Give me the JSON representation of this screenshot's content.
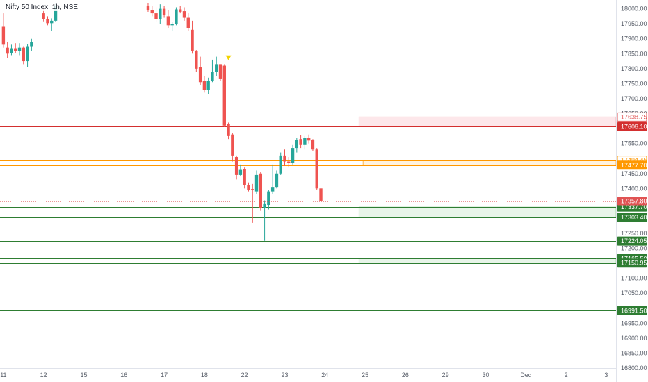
{
  "header": {
    "title": "Nifty 50 Index, 1h, NSE"
  },
  "chart_data": {
    "type": "candlestick",
    "title": "Nifty 50 Index, 1h, NSE",
    "ylim": [
      16800,
      18020
    ],
    "y_ticks": [
      "18000.00",
      "17950.00",
      "17900.00",
      "17850.00",
      "17800.00",
      "17750.00",
      "17700.00",
      "17650.00",
      "17550.00",
      "17500.00",
      "17450.00",
      "17400.00",
      "17250.00",
      "17200.00",
      "17100.00",
      "17050.00",
      "16950.00",
      "16900.00",
      "16850.00",
      "16800.00"
    ],
    "x_ticks": [
      {
        "label": "11",
        "bar": 0
      },
      {
        "label": "12",
        "bar": 10
      },
      {
        "label": "15",
        "bar": 20
      },
      {
        "label": "16",
        "bar": 30
      },
      {
        "label": "17",
        "bar": 40
      },
      {
        "label": "18",
        "bar": 50
      },
      {
        "label": "22",
        "bar": 60
      },
      {
        "label": "23",
        "bar": 70
      },
      {
        "label": "24",
        "bar": 80
      },
      {
        "label": "25",
        "bar": 90
      },
      {
        "label": "26",
        "bar": 100
      },
      {
        "label": "29",
        "bar": 110
      },
      {
        "label": "30",
        "bar": 120
      },
      {
        "label": "Dec",
        "bar": 130
      },
      {
        "label": "2",
        "bar": 140
      },
      {
        "label": "3",
        "bar": 150
      }
    ],
    "candles": [
      {
        "o": 17940,
        "h": 17985,
        "l": 17870,
        "c": 17880
      },
      {
        "o": 17870,
        "h": 17890,
        "l": 17835,
        "c": 17850
      },
      {
        "o": 17852,
        "h": 17880,
        "l": 17845,
        "c": 17868
      },
      {
        "o": 17868,
        "h": 17885,
        "l": 17852,
        "c": 17860
      },
      {
        "o": 17860,
        "h": 17885,
        "l": 17845,
        "c": 17870
      },
      {
        "o": 17870,
        "h": 17875,
        "l": 17815,
        "c": 17825
      },
      {
        "o": 17825,
        "h": 17882,
        "l": 17805,
        "c": 17875
      },
      {
        "o": 17875,
        "h": 17900,
        "l": 17860,
        "c": 17888
      },
      {
        "o": null,
        "h": null,
        "l": null,
        "c": null
      },
      {
        "o": null,
        "h": null,
        "l": null,
        "c": null
      },
      {
        "o": 17985,
        "h": 18000,
        "l": 17958,
        "c": 17965
      },
      {
        "o": 17965,
        "h": 17975,
        "l": 17945,
        "c": 17952
      },
      {
        "o": 17952,
        "h": 17968,
        "l": 17925,
        "c": 17960
      },
      {
        "o": 17960,
        "h": 18020,
        "l": 17955,
        "c": 18010
      },
      {
        "o": null,
        "h": null,
        "l": null,
        "c": null
      },
      {
        "o": null,
        "h": null,
        "l": null,
        "c": null
      },
      {
        "o": null,
        "h": null,
        "l": null,
        "c": null
      },
      {
        "o": null,
        "h": null,
        "l": null,
        "c": null
      },
      {
        "o": null,
        "h": null,
        "l": null,
        "c": null
      },
      {
        "o": null,
        "h": null,
        "l": null,
        "c": null
      },
      {
        "o": null,
        "h": null,
        "l": null,
        "c": null
      },
      {
        "o": null,
        "h": null,
        "l": null,
        "c": null
      },
      {
        "o": null,
        "h": null,
        "l": null,
        "c": null
      },
      {
        "o": null,
        "h": null,
        "l": null,
        "c": null
      },
      {
        "o": null,
        "h": null,
        "l": null,
        "c": null
      },
      {
        "o": null,
        "h": null,
        "l": null,
        "c": null
      },
      {
        "o": null,
        "h": null,
        "l": null,
        "c": null
      },
      {
        "o": null,
        "h": null,
        "l": null,
        "c": null
      },
      {
        "o": null,
        "h": null,
        "l": null,
        "c": null
      },
      {
        "o": null,
        "h": null,
        "l": null,
        "c": null
      },
      {
        "o": null,
        "h": null,
        "l": null,
        "c": null
      },
      {
        "o": null,
        "h": null,
        "l": null,
        "c": null
      },
      {
        "o": null,
        "h": null,
        "l": null,
        "c": null
      },
      {
        "o": null,
        "h": null,
        "l": null,
        "c": null
      },
      {
        "o": null,
        "h": null,
        "l": null,
        "c": null
      },
      {
        "o": null,
        "h": null,
        "l": null,
        "c": null
      },
      {
        "o": 18010,
        "h": 18020,
        "l": 17990,
        "c": 17995
      },
      {
        "o": 17995,
        "h": 18010,
        "l": 17975,
        "c": 17985
      },
      {
        "o": 17985,
        "h": 18005,
        "l": 17955,
        "c": 17965
      },
      {
        "o": 17965,
        "h": 18015,
        "l": 17950,
        "c": 18000
      },
      {
        "o": 18000,
        "h": 18010,
        "l": 17970,
        "c": 17980
      },
      {
        "o": 17975,
        "h": 17995,
        "l": 17935,
        "c": 17945
      },
      {
        "o": 17945,
        "h": 17955,
        "l": 17925,
        "c": 17950
      },
      {
        "o": 17950,
        "h": 18005,
        "l": 17945,
        "c": 17998
      },
      {
        "o": 17998,
        "h": 18010,
        "l": 17985,
        "c": 17990
      },
      {
        "o": 17992,
        "h": 18005,
        "l": 17960,
        "c": 17970
      },
      {
        "o": 17970,
        "h": 17985,
        "l": 17925,
        "c": 17935
      },
      {
        "o": 17930,
        "h": 17960,
        "l": 17850,
        "c": 17860
      },
      {
        "o": 17860,
        "h": 17862,
        "l": 17790,
        "c": 17800
      },
      {
        "o": 17805,
        "h": 17840,
        "l": 17745,
        "c": 17755
      },
      {
        "o": 17760,
        "h": 17775,
        "l": 17720,
        "c": 17730
      },
      {
        "o": 17730,
        "h": 17770,
        "l": 17715,
        "c": 17760
      },
      {
        "o": 17760,
        "h": 17830,
        "l": 17755,
        "c": 17790
      },
      {
        "o": 17790,
        "h": 17840,
        "l": 17775,
        "c": 17815
      },
      {
        "o": 17815,
        "h": 17815,
        "l": 17760,
        "c": 17765
      },
      {
        "o": 17810,
        "h": 17815,
        "l": 17605,
        "c": 17610
      },
      {
        "o": 17615,
        "h": 17620,
        "l": 17565,
        "c": 17575
      },
      {
        "o": 17580,
        "h": 17585,
        "l": 17490,
        "c": 17510
      },
      {
        "o": 17505,
        "h": 17510,
        "l": 17430,
        "c": 17445
      },
      {
        "o": 17445,
        "h": 17480,
        "l": 17440,
        "c": 17462
      },
      {
        "o": 17465,
        "h": 17470,
        "l": 17400,
        "c": 17410
      },
      {
        "o": 17410,
        "h": 17420,
        "l": 17390,
        "c": 17395
      },
      {
        "o": 17398,
        "h": 17415,
        "l": 17285,
        "c": 17395
      },
      {
        "o": 17390,
        "h": 17460,
        "l": 17380,
        "c": 17445
      },
      {
        "o": 17450,
        "h": 17455,
        "l": 17325,
        "c": 17335
      },
      {
        "o": 17335,
        "h": 17360,
        "l": 17225,
        "c": 17350
      },
      {
        "o": 17345,
        "h": 17395,
        "l": 17330,
        "c": 17390
      },
      {
        "o": 17390,
        "h": 17480,
        "l": 17380,
        "c": 17405
      },
      {
        "o": 17405,
        "h": 17460,
        "l": 17400,
        "c": 17450
      },
      {
        "o": 17450,
        "h": 17520,
        "l": 17445,
        "c": 17510
      },
      {
        "o": 17510,
        "h": 17530,
        "l": 17475,
        "c": 17490
      },
      {
        "o": 17490,
        "h": 17505,
        "l": 17470,
        "c": 17485
      },
      {
        "o": 17485,
        "h": 17545,
        "l": 17480,
        "c": 17535
      },
      {
        "o": 17535,
        "h": 17570,
        "l": 17520,
        "c": 17562
      },
      {
        "o": 17565,
        "h": 17578,
        "l": 17535,
        "c": 17545
      },
      {
        "o": 17545,
        "h": 17575,
        "l": 17530,
        "c": 17570
      },
      {
        "o": 17570,
        "h": 17580,
        "l": 17550,
        "c": 17560
      },
      {
        "o": 17562,
        "h": 17565,
        "l": 17525,
        "c": 17530
      },
      {
        "o": 17530,
        "h": 17535,
        "l": 17395,
        "c": 17400
      },
      {
        "o": 17400,
        "h": 17405,
        "l": 17355,
        "c": 17357
      }
    ],
    "horizontal_levels": [
      {
        "value": 17638.75,
        "label": "17638.75",
        "color": "#e05353",
        "tag": "light"
      },
      {
        "value": 17606.1,
        "label": "17606.10",
        "color": "#d32f2f",
        "tag": "solid"
      },
      {
        "value": 17494.45,
        "label": "17494.45",
        "color": "#ff9800",
        "tag": "light"
      },
      {
        "value": 17477.7,
        "label": "17477.70",
        "color": "#ff9800",
        "tag": "solid"
      },
      {
        "value": 17337.7,
        "label": "17337.70",
        "color": "#2e7d32",
        "tag": "solid"
      },
      {
        "value": 17303.4,
        "label": "17303.40",
        "color": "#2e7d32",
        "tag": "solid"
      },
      {
        "value": 17224.05,
        "label": "17224.05",
        "color": "#2e7d32",
        "tag": "solid"
      },
      {
        "value": 17165.5,
        "label": "17165.50",
        "color": "#2e7d32",
        "tag": "solid"
      },
      {
        "value": 17150.95,
        "label": "17150.95",
        "color": "#2e7d32",
        "tag": "solid"
      },
      {
        "value": 16991.5,
        "label": "16991.50",
        "color": "#2e7d32",
        "tag": "solid"
      }
    ],
    "last_price": {
      "value": 17357.8,
      "label": "17357.80",
      "color": "#e05353"
    },
    "zones": [
      {
        "from": 17606.1,
        "to": 17638.75,
        "start_bar": 89,
        "color": "#fde7ea",
        "border": "#f3b3bc"
      },
      {
        "from": 17477.7,
        "to": 17494.45,
        "start_bar": 90,
        "color": "#fff3e0",
        "border": "#ffb74d"
      },
      {
        "from": 17303.4,
        "to": 17337.7,
        "start_bar": 89,
        "color": "#e8f5e9",
        "border": "#a5d6a7"
      },
      {
        "from": 17150.95,
        "to": 17165.5,
        "start_bar": 89,
        "color": "#e8f5e9",
        "border": "#a5d6a7"
      }
    ],
    "marker": {
      "bar": 56,
      "value": 17835,
      "color": "#f2d300"
    },
    "colors": {
      "up": "#26a69a",
      "down": "#ef5350"
    }
  }
}
